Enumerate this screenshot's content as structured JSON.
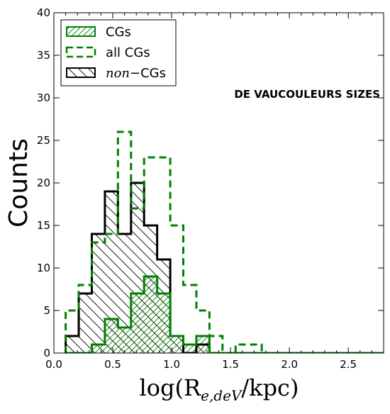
{
  "chart_data": {
    "type": "histogram",
    "xlabel": "log(R_{e,deV}/kpc)",
    "ylabel": "Counts",
    "xlim": [
      0.0,
      2.8
    ],
    "ylim": [
      0,
      40
    ],
    "xticks": [
      "0.0",
      "0.5",
      "1.0",
      "1.5",
      "2.0",
      "2.5"
    ],
    "yticks": [
      "0",
      "5",
      "10",
      "15",
      "20",
      "25",
      "30",
      "35",
      "40"
    ],
    "annotation": "DE VAUCOULEURS SIZES",
    "bin_edges": [
      0.1,
      0.211,
      0.322,
      0.433,
      0.544,
      0.655,
      0.766,
      0.877,
      0.988,
      1.099,
      1.21,
      1.321,
      1.432,
      1.543,
      1.654,
      1.765,
      1.876,
      1.987,
      2.098,
      2.209,
      2.32,
      2.431,
      2.542,
      2.653,
      2.8
    ],
    "series": [
      {
        "name": "CGs",
        "style": "solid-hatched",
        "color": "#008000",
        "values": [
          0,
          0,
          1,
          4,
          3,
          7,
          9,
          7,
          2,
          1,
          2,
          0,
          0,
          0,
          0,
          0,
          0,
          0,
          0,
          0,
          0,
          0,
          0,
          0
        ]
      },
      {
        "name": "all CGs",
        "style": "dashed",
        "color": "#008000",
        "values": [
          5,
          8,
          13,
          14,
          26,
          17,
          23,
          23,
          15,
          8,
          5,
          2,
          0,
          1,
          1,
          0,
          0,
          0,
          0,
          0,
          0,
          0,
          0,
          0
        ]
      },
      {
        "name": "non−CGs",
        "style": "solid-hatched",
        "color": "#000000",
        "values": [
          2,
          7,
          14,
          19,
          14,
          20,
          15,
          11,
          2,
          0,
          1,
          0,
          0,
          0,
          0,
          0,
          0,
          0,
          0,
          0,
          0,
          0,
          0,
          0
        ]
      }
    ],
    "legend": {
      "placement": "top-left",
      "entries": [
        {
          "name": "CGs"
        },
        {
          "name": "all CGs"
        },
        {
          "name_italic": "non",
          "name_rest": "−CGs"
        }
      ]
    }
  }
}
